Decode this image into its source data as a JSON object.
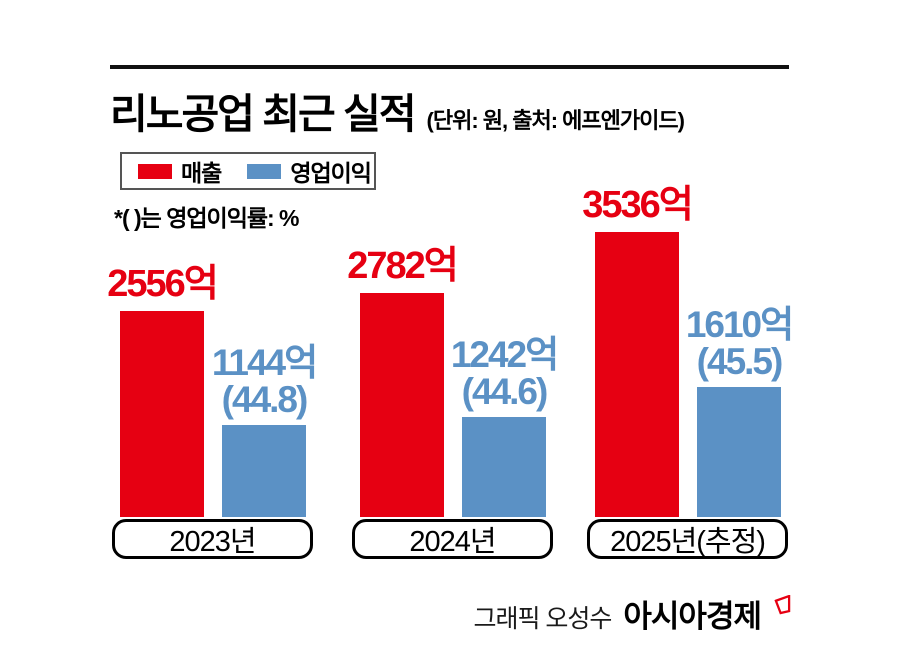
{
  "header": {
    "title": "리노공업 최근 실적",
    "subtitle": "(단위: 원, 출처: 에프엔가이드)"
  },
  "legend": {
    "items": [
      {
        "label": "매출",
        "color": "#e60012"
      },
      {
        "label": "영업이익",
        "color": "#5b91c5"
      }
    ]
  },
  "note": "*( )는 영업이익률: %",
  "chart_data": {
    "type": "bar",
    "title": "리노공업 최근 실적",
    "unit_note": "(단위: 원, 출처: 에프엔가이드)",
    "annotation": "*( )는 영업이익률: %",
    "categories": [
      "2023년",
      "2024년",
      "2025년(추정)"
    ],
    "series": [
      {
        "name": "매출",
        "color": "#e60012",
        "values": [
          2556,
          2782,
          3536
        ],
        "labels": [
          "2556억",
          "2782억",
          "3536억"
        ]
      },
      {
        "name": "영업이익",
        "color": "#5b91c5",
        "values": [
          1144,
          1242,
          1610
        ],
        "labels": [
          "1144억",
          "1242억",
          "1610억"
        ],
        "sub_labels": [
          "(44.8)",
          "(44.6)",
          "(45.5)"
        ]
      }
    ],
    "operating_margin_pct": [
      44.8,
      44.6,
      45.5
    ],
    "ylim": [
      0,
      3536
    ],
    "grid": false,
    "legend_position": "top-left"
  },
  "footer": {
    "credit": "그래픽 오성수",
    "brand": "아시아경제"
  },
  "colors": {
    "revenue": "#e60012",
    "operating_profit": "#5b91c5",
    "mark": "#e60012"
  }
}
